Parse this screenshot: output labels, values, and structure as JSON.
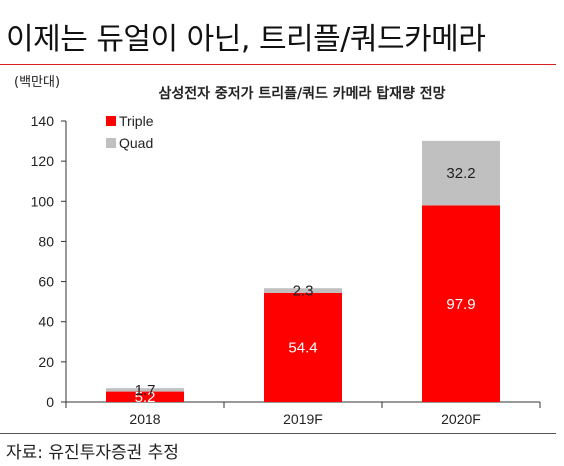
{
  "headline": "이제는 듀얼이 아닌, 트리플/쿼드카메라",
  "source": "자료: 유진투자증권 추정",
  "chart_data": {
    "type": "bar",
    "stacked": true,
    "title": "삼성전자 중저가 트리플/쿼드 카메라 탑재량 전망",
    "unit": "(백만대)",
    "categories": [
      "2018",
      "2019F",
      "2020F"
    ],
    "series": [
      {
        "name": "Triple",
        "color": "#ff0000",
        "values": [
          5.2,
          54.4,
          97.9
        ],
        "labels": [
          "5.2",
          "54.4",
          "97.9"
        ],
        "label_color": "#ffffff"
      },
      {
        "name": "Quad",
        "color": "#c0c0c0",
        "values": [
          1.7,
          2.3,
          32.2
        ],
        "labels": [
          "1.7",
          "2.3",
          "32.2"
        ],
        "label_color": "#222222"
      }
    ],
    "ylim": [
      0,
      140
    ],
    "yticks": [
      "0",
      "20",
      "40",
      "60",
      "80",
      "100",
      "120",
      "140"
    ],
    "legend_position": "top-left",
    "grid": false
  }
}
